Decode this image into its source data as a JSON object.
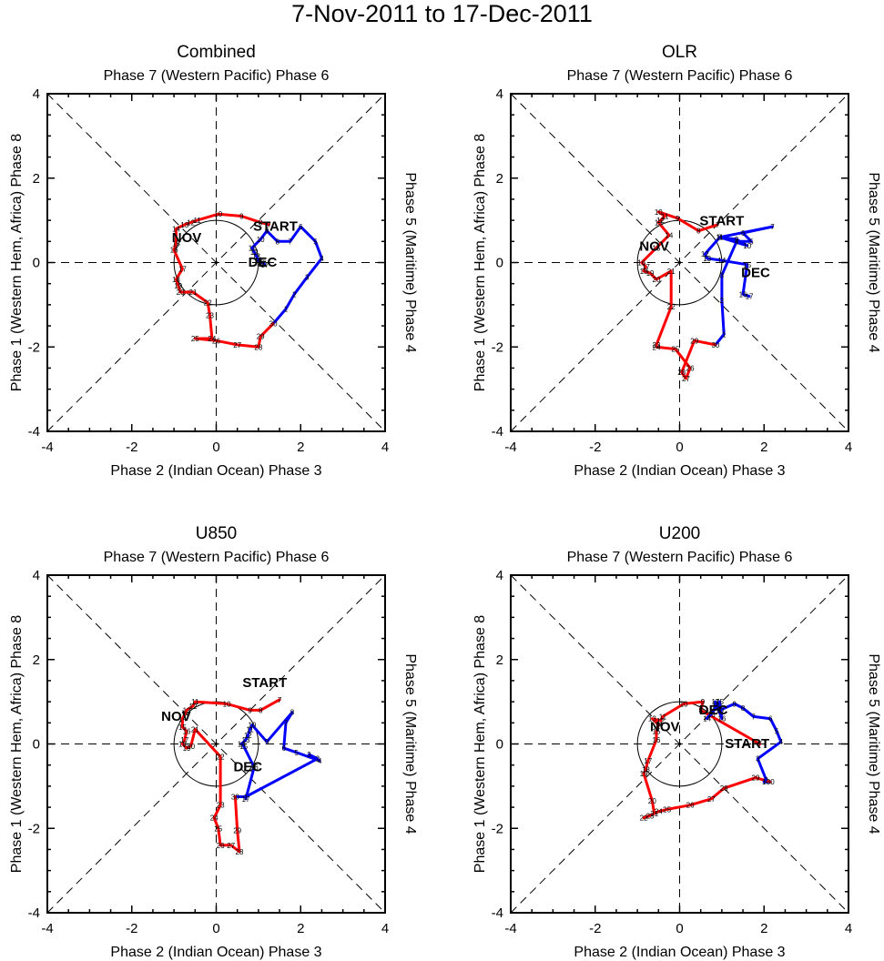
{
  "title": "7-Nov-2011 to 17-Dec-2011",
  "colors": {
    "nov": "#ff0000",
    "dec": "#0000ff",
    "start": "#000000",
    "axis": "#000000"
  },
  "labels": {
    "start": "START",
    "nov": "NOV",
    "dec": "DEC"
  },
  "axis_labels": {
    "top": "Phase 7 (Western Pacific) Phase 6",
    "bottom": "Phase 2 (Indian Ocean) Phase 3",
    "left": "Phase 1 (Western Hem, Africa) Phase 8",
    "right": "Phase 5 (Maritime) Phase 4"
  },
  "chart_data": [
    {
      "type": "line",
      "title": "Combined",
      "xlim": [
        -4,
        4
      ],
      "ylim": [
        -4,
        4
      ],
      "xticks": [
        -4,
        -2,
        0,
        2,
        4
      ],
      "yticks": [
        -4,
        -2,
        0,
        2,
        4
      ],
      "tick_labels": [
        "-4",
        "-2",
        "0",
        "2",
        "4"
      ],
      "start_label_at": [
        1.4,
        0.75
      ],
      "nov_label_at": [
        -0.7,
        0.48
      ],
      "dec_label_at": [
        1.1,
        -0.1
      ],
      "nov_days": [
        7,
        8,
        9,
        10,
        11,
        12,
        13,
        14,
        15,
        16,
        17,
        18,
        19,
        20,
        21,
        22,
        23,
        24,
        25,
        26,
        27,
        28,
        29,
        30
      ],
      "nov": [
        [
          1.25,
          0.9
        ],
        [
          1.05,
          0.95
        ],
        [
          0.6,
          1.1
        ],
        [
          0.05,
          1.15
        ],
        [
          -0.45,
          1.0
        ],
        [
          -0.6,
          0.95
        ],
        [
          -0.75,
          0.9
        ],
        [
          -0.95,
          0.8
        ],
        [
          -0.95,
          0.45
        ],
        [
          -1.0,
          0.3
        ],
        [
          -0.8,
          -0.15
        ],
        [
          -0.95,
          -0.4
        ],
        [
          -0.9,
          -0.55
        ],
        [
          -0.85,
          -0.7
        ],
        [
          -0.55,
          -0.7
        ],
        [
          -0.2,
          -0.95
        ],
        [
          -0.15,
          -1.25
        ],
        [
          -0.1,
          -1.8
        ],
        [
          -0.5,
          -1.8
        ],
        [
          0.0,
          -1.85
        ],
        [
          0.5,
          -1.95
        ],
        [
          1.0,
          -2.0
        ],
        [
          1.05,
          -1.75
        ],
        [
          1.35,
          -1.45
        ]
      ],
      "dec_days": [
        1,
        2,
        3,
        4,
        5,
        6,
        7,
        8,
        9,
        10,
        11,
        12,
        13,
        14,
        15,
        16,
        17
      ],
      "dec": [
        [
          1.65,
          -1.1
        ],
        [
          1.85,
          -0.75
        ],
        [
          2.15,
          -0.35
        ],
        [
          2.5,
          0.1
        ],
        [
          2.35,
          0.5
        ],
        [
          2.0,
          0.85
        ],
        [
          1.75,
          0.5
        ],
        [
          1.45,
          0.5
        ],
        [
          1.2,
          0.75
        ],
        [
          1.05,
          0.55
        ],
        [
          0.85,
          0.35
        ],
        [
          0.9,
          0.25
        ],
        [
          0.95,
          0.15
        ],
        [
          1.0,
          0.05
        ],
        [
          1.05,
          0.0
        ],
        [
          1.1,
          0.0
        ],
        [
          1.15,
          -0.05
        ]
      ]
    },
    {
      "type": "line",
      "title": "OLR",
      "xlim": [
        -4,
        4
      ],
      "ylim": [
        -4,
        4
      ],
      "xticks": [
        -4,
        -2,
        0,
        2,
        4
      ],
      "yticks": [
        -4,
        -2,
        0,
        2,
        4
      ],
      "tick_labels": [
        "-4",
        "-2",
        "0",
        "2",
        "4"
      ],
      "start_label_at": [
        1.0,
        0.88
      ],
      "nov_label_at": [
        -0.6,
        0.28
      ],
      "dec_label_at": [
        1.8,
        -0.35
      ],
      "nov_days": [
        7,
        8,
        9,
        10,
        11,
        12,
        13,
        14,
        15,
        16,
        17,
        18,
        19,
        20,
        21,
        22,
        23,
        24,
        25,
        26,
        27,
        28,
        29,
        30
      ],
      "nov": [
        [
          0.9,
          0.9
        ],
        [
          0.45,
          0.75
        ],
        [
          -0.05,
          1.05
        ],
        [
          -0.5,
          1.2
        ],
        [
          -0.35,
          1.1
        ],
        [
          -0.45,
          1.0
        ],
        [
          -0.5,
          0.95
        ],
        [
          -0.25,
          0.65
        ],
        [
          -0.55,
          0.35
        ],
        [
          -0.9,
          0.0
        ],
        [
          -0.8,
          -0.1
        ],
        [
          -0.85,
          -0.2
        ],
        [
          -0.7,
          -0.25
        ],
        [
          -0.55,
          -0.4
        ],
        [
          -0.2,
          -0.2
        ],
        [
          -0.2,
          -1.05
        ],
        [
          -0.55,
          -1.95
        ],
        [
          -0.55,
          -2.0
        ],
        [
          -0.1,
          -2.05
        ],
        [
          0.25,
          -2.5
        ],
        [
          0.15,
          -2.75
        ],
        [
          0.05,
          -2.6
        ],
        [
          0.35,
          -1.85
        ],
        [
          0.85,
          -1.95
        ]
      ],
      "dec_days": [
        1,
        2,
        3,
        4,
        5,
        6,
        7,
        8,
        9,
        10,
        11,
        12,
        13,
        14,
        15,
        16,
        17
      ],
      "dec": [
        [
          1.05,
          -1.7
        ],
        [
          1.0,
          -0.9
        ],
        [
          1.0,
          -0.3
        ],
        [
          1.35,
          0.5
        ],
        [
          1.7,
          0.5
        ],
        [
          1.5,
          0.7
        ],
        [
          2.2,
          0.85
        ],
        [
          0.95,
          0.6
        ],
        [
          1.35,
          0.55
        ],
        [
          1.6,
          0.4
        ],
        [
          0.95,
          0.6
        ],
        [
          0.6,
          0.2
        ],
        [
          0.65,
          0.1
        ],
        [
          1.0,
          0.05
        ],
        [
          1.6,
          -0.05
        ],
        [
          1.5,
          -0.75
        ],
        [
          1.65,
          -0.8
        ]
      ]
    },
    {
      "type": "line",
      "title": "U850",
      "xlim": [
        -4,
        4
      ],
      "ylim": [
        -4,
        4
      ],
      "xticks": [
        -4,
        -2,
        0,
        2,
        4
      ],
      "yticks": [
        -4,
        -2,
        0,
        2,
        4
      ],
      "tick_labels": [
        "-4",
        "-2",
        "0",
        "2",
        "4"
      ],
      "start_label_at": [
        1.15,
        1.35
      ],
      "nov_label_at": [
        -0.95,
        0.55
      ],
      "dec_label_at": [
        0.75,
        -0.65
      ],
      "nov_days": [
        7,
        8,
        9,
        10,
        11,
        12,
        13,
        14,
        15,
        16,
        17,
        18,
        19,
        20,
        21,
        22,
        23,
        24,
        25,
        26,
        27,
        28,
        29,
        30
      ],
      "nov": [
        [
          1.5,
          1.05
        ],
        [
          1.05,
          0.8
        ],
        [
          0.8,
          0.8
        ],
        [
          0.25,
          0.95
        ],
        [
          -0.5,
          1.0
        ],
        [
          -0.55,
          0.9
        ],
        [
          -0.7,
          0.8
        ],
        [
          -0.8,
          0.6
        ],
        [
          -0.8,
          0.4
        ],
        [
          -0.7,
          0.3
        ],
        [
          -0.75,
          0.1
        ],
        [
          -0.8,
          0.0
        ],
        [
          -0.7,
          -0.1
        ],
        [
          -0.6,
          -0.05
        ],
        [
          -0.5,
          0.35
        ],
        [
          0.1,
          -0.3
        ],
        [
          0.1,
          -1.45
        ],
        [
          -0.05,
          -1.75
        ],
        [
          0.05,
          -2.0
        ],
        [
          0.1,
          -2.4
        ],
        [
          0.35,
          -2.4
        ],
        [
          0.55,
          -2.55
        ],
        [
          0.5,
          -2.05
        ],
        [
          0.45,
          -1.25
        ]
      ],
      "dec_days": [
        1,
        2,
        3,
        4,
        5,
        6,
        7,
        8,
        9,
        10,
        11,
        12,
        13,
        14,
        15,
        16,
        17
      ],
      "dec": [
        [
          0.7,
          -1.25
        ],
        [
          2.4,
          -0.35
        ],
        [
          2.2,
          -0.25
        ],
        [
          2.45,
          -0.4
        ],
        [
          1.9,
          -0.2
        ],
        [
          1.6,
          -0.1
        ],
        [
          1.65,
          0.5
        ],
        [
          1.8,
          0.75
        ],
        [
          1.2,
          0.05
        ],
        [
          0.85,
          0.45
        ],
        [
          0.8,
          0.35
        ],
        [
          0.75,
          0.2
        ],
        [
          0.7,
          0.1
        ],
        [
          0.6,
          0.0
        ],
        [
          0.65,
          -0.05
        ],
        [
          0.9,
          -0.55
        ],
        [
          0.7,
          -1.3
        ]
      ]
    },
    {
      "type": "line",
      "title": "U200",
      "xlim": [
        -4,
        4
      ],
      "ylim": [
        -4,
        4
      ],
      "xticks": [
        -4,
        -2,
        0,
        2,
        4
      ],
      "yticks": [
        -4,
        -2,
        0,
        2,
        4
      ],
      "tick_labels": [
        "-4",
        "-2",
        "0",
        "2",
        "4"
      ],
      "start_label_at": [
        1.6,
        -0.1
      ],
      "nov_label_at": [
        -0.35,
        0.3
      ],
      "dec_label_at": [
        0.8,
        0.7
      ],
      "nov_days": [
        7,
        8,
        9,
        10,
        11,
        12,
        13,
        14,
        15,
        16,
        17,
        18,
        19,
        20,
        21,
        22,
        23,
        24,
        25,
        26,
        27,
        28,
        29,
        30
      ],
      "nov": [
        [
          1.9,
          0.0
        ],
        [
          0.5,
          0.8
        ],
        [
          0.55,
          1.0
        ],
        [
          0.1,
          0.95
        ],
        [
          -0.4,
          0.65
        ],
        [
          -0.45,
          0.55
        ],
        [
          -0.65,
          0.6
        ],
        [
          -0.5,
          0.45
        ],
        [
          -0.55,
          0.3
        ],
        [
          -0.55,
          0.1
        ],
        [
          -0.75,
          -0.4
        ],
        [
          -0.8,
          -0.6
        ],
        [
          -0.85,
          -0.7
        ],
        [
          -0.65,
          -1.35
        ],
        [
          -0.6,
          -1.65
        ],
        [
          -0.85,
          -1.75
        ],
        [
          -0.7,
          -1.7
        ],
        [
          -0.5,
          -1.6
        ],
        [
          -0.3,
          -1.55
        ],
        [
          0.25,
          -1.45
        ],
        [
          0.75,
          -1.3
        ],
        [
          1.05,
          -1.05
        ],
        [
          1.8,
          -0.8
        ],
        [
          2.15,
          -0.9
        ]
      ],
      "dec_days": [
        1,
        2,
        3,
        4,
        5,
        6,
        7,
        8,
        9,
        10,
        11,
        12,
        13,
        14,
        15,
        16,
        17
      ],
      "dec": [
        [
          2.0,
          -0.9
        ],
        [
          2.05,
          -0.85
        ],
        [
          1.85,
          -0.35
        ],
        [
          2.4,
          0.05
        ],
        [
          2.3,
          0.3
        ],
        [
          2.15,
          0.6
        ],
        [
          1.75,
          0.65
        ],
        [
          1.5,
          0.85
        ],
        [
          1.3,
          0.95
        ],
        [
          0.95,
          0.8
        ],
        [
          0.85,
          0.95
        ],
        [
          0.85,
          0.85
        ],
        [
          0.75,
          0.7
        ],
        [
          0.65,
          0.6
        ],
        [
          0.95,
          1.0
        ],
        [
          1.0,
          0.6
        ],
        [
          0.85,
          1.0
        ]
      ]
    }
  ]
}
